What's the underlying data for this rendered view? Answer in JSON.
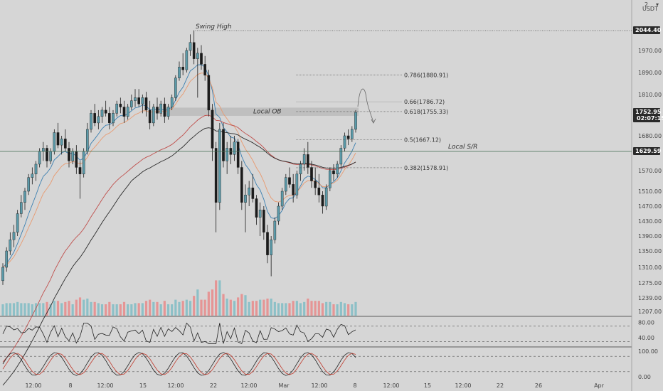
{
  "header": {
    "scale_label": "2",
    "currency": "USDT",
    "currency_dropdown_label": "▾"
  },
  "chart_data": {
    "type": "candlestick",
    "symbol_quote": "USDT",
    "price_axis": {
      "ylim": [
        1190,
        2110
      ],
      "ticks": [
        1970,
        1890,
        1810,
        1680,
        1570,
        1510,
        1470,
        1430,
        1390,
        1350,
        1310,
        1275,
        1239,
        1207
      ]
    },
    "time_axis": {
      "ticks": [
        "12:00",
        "8",
        "12:00",
        "15",
        "12:00",
        "22",
        "12:00",
        "Mar",
        "12:00",
        "8",
        "12:00",
        "15",
        "12:00",
        "22",
        "26",
        "Apr"
      ]
    },
    "price_tags": [
      {
        "label": "2044.40",
        "value": 2044.4,
        "style": "dark"
      },
      {
        "label": "1752.95",
        "sublabel": "02:07:15",
        "value": 1752.95,
        "style": "dark"
      },
      {
        "label": "1629.59",
        "value": 1629.59,
        "style": "dark"
      }
    ],
    "annotations": {
      "swing_high": {
        "label": "Swing High",
        "value": 2044.4
      },
      "local_ob": {
        "label": "Local OB",
        "low": 1742,
        "high": 1768
      },
      "local_sr": {
        "label": "Local S/R",
        "value": 1629.59
      }
    },
    "fib_levels": [
      {
        "label": "0.786(1880.91)",
        "value": 1880.91,
        "faded": false
      },
      {
        "label": "0.66(1786.72)",
        "value": 1786.72,
        "faded": true
      },
      {
        "label": "0.618(1755.33)",
        "value": 1755.33,
        "faded": false
      },
      {
        "label": "0.5(1667.12)",
        "value": 1667.12,
        "faded": false
      },
      {
        "label": "0.382(1578.91)",
        "value": 1578.91,
        "faded": false
      }
    ],
    "candles": [
      [
        1280,
        1320,
        1270,
        1310
      ],
      [
        1310,
        1360,
        1300,
        1350
      ],
      [
        1350,
        1400,
        1340,
        1380
      ],
      [
        1380,
        1420,
        1360,
        1400
      ],
      [
        1400,
        1460,
        1390,
        1450
      ],
      [
        1450,
        1500,
        1440,
        1480
      ],
      [
        1480,
        1520,
        1460,
        1510
      ],
      [
        1510,
        1560,
        1500,
        1550
      ],
      [
        1550,
        1580,
        1530,
        1560
      ],
      [
        1560,
        1600,
        1540,
        1590
      ],
      [
        1590,
        1640,
        1580,
        1630
      ],
      [
        1630,
        1660,
        1600,
        1640
      ],
      [
        1640,
        1650,
        1580,
        1600
      ],
      [
        1600,
        1640,
        1590,
        1630
      ],
      [
        1630,
        1700,
        1620,
        1690
      ],
      [
        1690,
        1720,
        1640,
        1650
      ],
      [
        1650,
        1680,
        1620,
        1670
      ],
      [
        1670,
        1700,
        1630,
        1640
      ],
      [
        1640,
        1660,
        1580,
        1600
      ],
      [
        1600,
        1640,
        1590,
        1630
      ],
      [
        1630,
        1650,
        1560,
        1580
      ],
      [
        1580,
        1600,
        1490,
        1560
      ],
      [
        1560,
        1640,
        1550,
        1630
      ],
      [
        1630,
        1720,
        1620,
        1700
      ],
      [
        1700,
        1760,
        1690,
        1750
      ],
      [
        1750,
        1780,
        1710,
        1720
      ],
      [
        1720,
        1760,
        1700,
        1740
      ],
      [
        1740,
        1770,
        1720,
        1760
      ],
      [
        1760,
        1790,
        1740,
        1750
      ],
      [
        1750,
        1770,
        1700,
        1720
      ],
      [
        1720,
        1760,
        1710,
        1750
      ],
      [
        1750,
        1790,
        1740,
        1780
      ],
      [
        1780,
        1800,
        1750,
        1770
      ],
      [
        1770,
        1790,
        1720,
        1740
      ],
      [
        1740,
        1780,
        1730,
        1770
      ],
      [
        1770,
        1810,
        1760,
        1790
      ],
      [
        1790,
        1830,
        1770,
        1800
      ],
      [
        1800,
        1830,
        1770,
        1780
      ],
      [
        1780,
        1810,
        1750,
        1800
      ],
      [
        1800,
        1820,
        1740,
        1760
      ],
      [
        1760,
        1790,
        1700,
        1720
      ],
      [
        1720,
        1780,
        1710,
        1770
      ],
      [
        1770,
        1800,
        1730,
        1750
      ],
      [
        1750,
        1790,
        1740,
        1780
      ],
      [
        1780,
        1800,
        1720,
        1740
      ],
      [
        1740,
        1780,
        1730,
        1770
      ],
      [
        1770,
        1810,
        1760,
        1800
      ],
      [
        1800,
        1880,
        1790,
        1870
      ],
      [
        1870,
        1930,
        1860,
        1910
      ],
      [
        1910,
        1960,
        1880,
        1900
      ],
      [
        1900,
        1980,
        1890,
        1970
      ],
      [
        1970,
        2030,
        1950,
        2000
      ],
      [
        2000,
        2044,
        1920,
        1940
      ],
      [
        1940,
        1980,
        1800,
        1960
      ],
      [
        1960,
        1990,
        1900,
        1920
      ],
      [
        1920,
        1950,
        1860,
        1880
      ],
      [
        1880,
        1900,
        1740,
        1760
      ],
      [
        1760,
        1780,
        1600,
        1640
      ],
      [
        1640,
        1660,
        1400,
        1480
      ],
      [
        1480,
        1720,
        1460,
        1700
      ],
      [
        1700,
        1720,
        1580,
        1600
      ],
      [
        1600,
        1660,
        1560,
        1640
      ],
      [
        1640,
        1680,
        1590,
        1620
      ],
      [
        1620,
        1680,
        1600,
        1660
      ],
      [
        1660,
        1670,
        1560,
        1580
      ],
      [
        1580,
        1600,
        1460,
        1480
      ],
      [
        1480,
        1530,
        1400,
        1500
      ],
      [
        1500,
        1540,
        1470,
        1520
      ],
      [
        1520,
        1560,
        1480,
        1490
      ],
      [
        1490,
        1500,
        1420,
        1440
      ],
      [
        1440,
        1480,
        1390,
        1460
      ],
      [
        1460,
        1470,
        1380,
        1400
      ],
      [
        1400,
        1420,
        1320,
        1340
      ],
      [
        1340,
        1390,
        1290,
        1380
      ],
      [
        1380,
        1440,
        1370,
        1430
      ],
      [
        1430,
        1480,
        1420,
        1470
      ],
      [
        1470,
        1520,
        1460,
        1510
      ],
      [
        1510,
        1560,
        1500,
        1550
      ],
      [
        1550,
        1580,
        1520,
        1530
      ],
      [
        1530,
        1560,
        1480,
        1500
      ],
      [
        1500,
        1570,
        1490,
        1560
      ],
      [
        1560,
        1600,
        1540,
        1590
      ],
      [
        1590,
        1640,
        1570,
        1620
      ],
      [
        1620,
        1660,
        1560,
        1580
      ],
      [
        1580,
        1600,
        1520,
        1540
      ],
      [
        1540,
        1580,
        1500,
        1520
      ],
      [
        1520,
        1560,
        1480,
        1500
      ],
      [
        1500,
        1510,
        1450,
        1470
      ],
      [
        1470,
        1530,
        1460,
        1520
      ],
      [
        1520,
        1580,
        1510,
        1570
      ],
      [
        1570,
        1590,
        1540,
        1560
      ],
      [
        1560,
        1600,
        1550,
        1590
      ],
      [
        1590,
        1650,
        1580,
        1640
      ],
      [
        1640,
        1690,
        1630,
        1680
      ],
      [
        1680,
        1700,
        1650,
        1670
      ],
      [
        1670,
        1710,
        1660,
        1700
      ],
      [
        1700,
        1760,
        1690,
        1752.95
      ]
    ],
    "volume_axis_labels_note": "volume shown as bars at bottom of main pane",
    "rsi_panel": {
      "ticks": [
        80.0,
        40.0
      ],
      "levels": [
        70,
        30
      ]
    },
    "stoch_panel": {
      "ticks": [
        100.0,
        0.0
      ],
      "levels": [
        80,
        20
      ]
    }
  },
  "colors": {
    "background": "#d6d6d6",
    "bull": "#5b9aa9",
    "bear": "#1b1b1b",
    "wick": "#1b1b1b",
    "sma_long": "#2b2b2b",
    "ema_long": "#c0504d",
    "ema_short": "#e89a70",
    "ema_fast": "#3b7fb0",
    "vol_up": "#7fbcc4",
    "vol_down": "#e88a8a",
    "tag_bg": "#2a2a2a",
    "ob_zone": "#bdbdbd"
  }
}
